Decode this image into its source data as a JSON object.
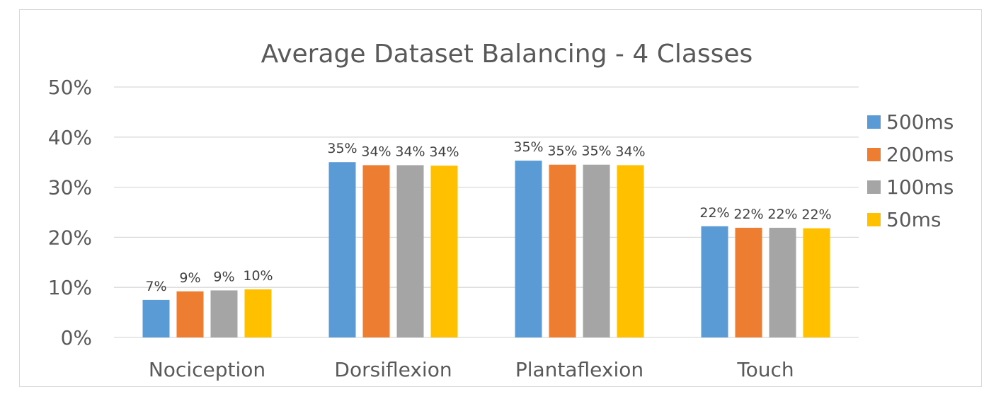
{
  "chart_data": {
    "type": "bar",
    "title": "Average Dataset Balancing - 4 Classes",
    "xlabel": "",
    "ylabel": "",
    "ylim": [
      0,
      50
    ],
    "y_ticks": [
      "0%",
      "10%",
      "20%",
      "30%",
      "40%",
      "50%"
    ],
    "y_tick_values": [
      0,
      10,
      20,
      30,
      40,
      50
    ],
    "grid": true,
    "legend_position": "right",
    "categories": [
      "Nociception",
      "Dorsiflexion",
      "Plantaflexion",
      "Touch"
    ],
    "series": [
      {
        "name": "500ms",
        "color": "#5b9bd5",
        "values": [
          7.5,
          35.0,
          35.3,
          22.2
        ],
        "labels": [
          "7%",
          "35%",
          "35%",
          "22%"
        ]
      },
      {
        "name": "200ms",
        "color": "#ed7d31",
        "values": [
          9.2,
          34.4,
          34.5,
          21.9
        ],
        "labels": [
          "9%",
          "34%",
          "35%",
          "22%"
        ]
      },
      {
        "name": "100ms",
        "color": "#a5a5a5",
        "values": [
          9.4,
          34.4,
          34.5,
          21.9
        ],
        "labels": [
          "9%",
          "34%",
          "35%",
          "22%"
        ]
      },
      {
        "name": "50ms",
        "color": "#ffc000",
        "values": [
          9.6,
          34.3,
          34.4,
          21.8
        ],
        "labels": [
          "10%",
          "34%",
          "34%",
          "22%"
        ]
      }
    ]
  }
}
